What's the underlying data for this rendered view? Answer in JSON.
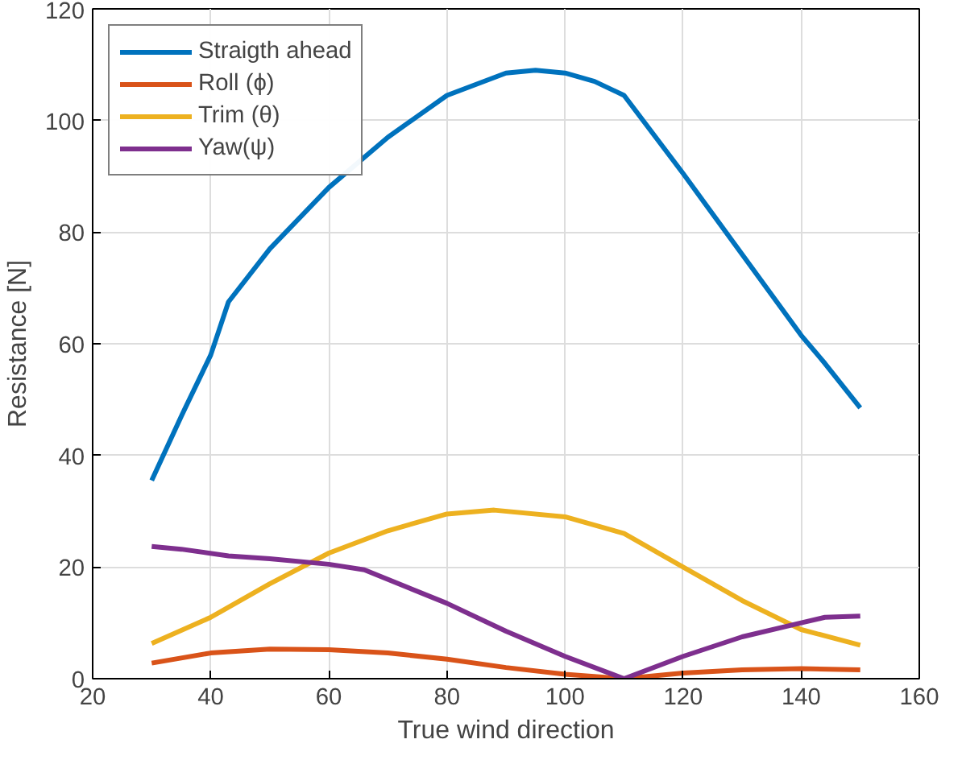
{
  "chart_data": {
    "type": "line",
    "xlabel": "True wind direction",
    "ylabel": "Resistance [N]",
    "xlim": [
      20,
      160
    ],
    "ylim": [
      0,
      120
    ],
    "xticks": [
      20,
      40,
      60,
      80,
      100,
      120,
      140,
      160
    ],
    "yticks": [
      0,
      20,
      40,
      60,
      80,
      100,
      120
    ],
    "grid": true,
    "legend": "top left",
    "line_style": "solid",
    "marker": "none",
    "series": [
      {
        "name": "Straigth ahead",
        "color": "#0072bd",
        "x": [
          30,
          35,
          40,
          43,
          50,
          60,
          70,
          80,
          90,
          95,
          100,
          105,
          110,
          120,
          130,
          140,
          144,
          150
        ],
        "values": [
          35.5,
          47,
          58,
          67.5,
          77,
          88,
          97,
          104.5,
          108.5,
          109,
          108.5,
          107,
          104.5,
          90.5,
          76,
          61.5,
          56.5,
          48.5
        ]
      },
      {
        "name": "Roll (ϕ)",
        "color": "#d95319",
        "x": [
          30,
          40,
          50,
          60,
          70,
          80,
          90,
          100,
          110,
          120,
          130,
          140,
          150
        ],
        "values": [
          2.8,
          4.6,
          5.3,
          5.2,
          4.6,
          3.5,
          2.0,
          0.8,
          0,
          1.0,
          1.6,
          1.8,
          1.6
        ]
      },
      {
        "name": "Trim (θ)",
        "color": "#edb120",
        "x": [
          30,
          40,
          50,
          60,
          70,
          80,
          88,
          100,
          110,
          120,
          130,
          140,
          150
        ],
        "values": [
          6.3,
          11,
          17,
          22.5,
          26.5,
          29.5,
          30.2,
          29,
          26,
          20,
          14,
          8.8,
          6
        ]
      },
      {
        "name": "Yaw(ψ)",
        "color": "#7e2f8e",
        "x": [
          30,
          35,
          43,
          50,
          60,
          66,
          80,
          90,
          100,
          110,
          120,
          130,
          140,
          144,
          150
        ],
        "values": [
          23.7,
          23.2,
          22,
          21.5,
          20.5,
          19.5,
          13.5,
          8.5,
          4,
          0,
          4,
          7.5,
          10,
          11,
          11.2
        ]
      }
    ]
  }
}
